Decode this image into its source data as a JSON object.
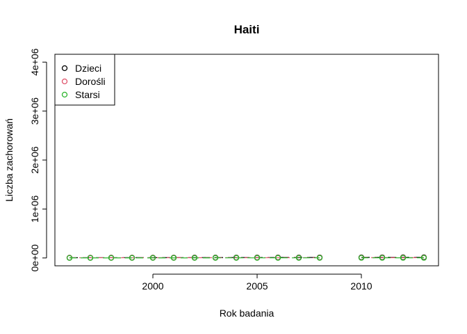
{
  "chart_data": {
    "type": "line",
    "title": "Haiti",
    "xlabel": "Rok badania",
    "ylabel": "Liczba zachorowań",
    "x": [
      1996,
      1997,
      1998,
      1999,
      2000,
      2001,
      2002,
      2003,
      2004,
      2005,
      2006,
      2007,
      2008,
      2009,
      2010,
      2011,
      2012,
      2013
    ],
    "xlim": [
      1995.3,
      2013.7
    ],
    "ylim": [
      -160000,
      4160000
    ],
    "x_ticks": [
      2000,
      2005,
      2010
    ],
    "x_tick_labels": [
      "2000",
      "2005",
      "2010"
    ],
    "y_ticks": [
      0,
      1000000,
      2000000,
      3000000,
      4000000
    ],
    "y_tick_labels": [
      "0e+00",
      "1e+06",
      "2e+06",
      "3e+06",
      "4e+06"
    ],
    "legend_position": "top-left",
    "grid": false,
    "series": [
      {
        "name": "Dzieci",
        "color": "#000000",
        "values": [
          5000,
          5500,
          6000,
          6500,
          7000,
          7500,
          8000,
          8500,
          9000,
          9500,
          10000,
          10500,
          11000,
          null,
          12000,
          12500,
          13000,
          13500
        ]
      },
      {
        "name": "Dorośli",
        "color": "#DF536B",
        "values": [
          4000,
          4200,
          4400,
          4600,
          4800,
          5000,
          5200,
          5400,
          5600,
          5800,
          6000,
          6200,
          6400,
          null,
          6800,
          7000,
          7200,
          7400
        ]
      },
      {
        "name": "Starsi",
        "color": "#2CB52C",
        "values": [
          1500,
          1600,
          1700,
          1800,
          1900,
          2000,
          2100,
          2200,
          2300,
          2400,
          2500,
          2600,
          2700,
          null,
          2900,
          3000,
          3100,
          3200
        ]
      }
    ]
  }
}
